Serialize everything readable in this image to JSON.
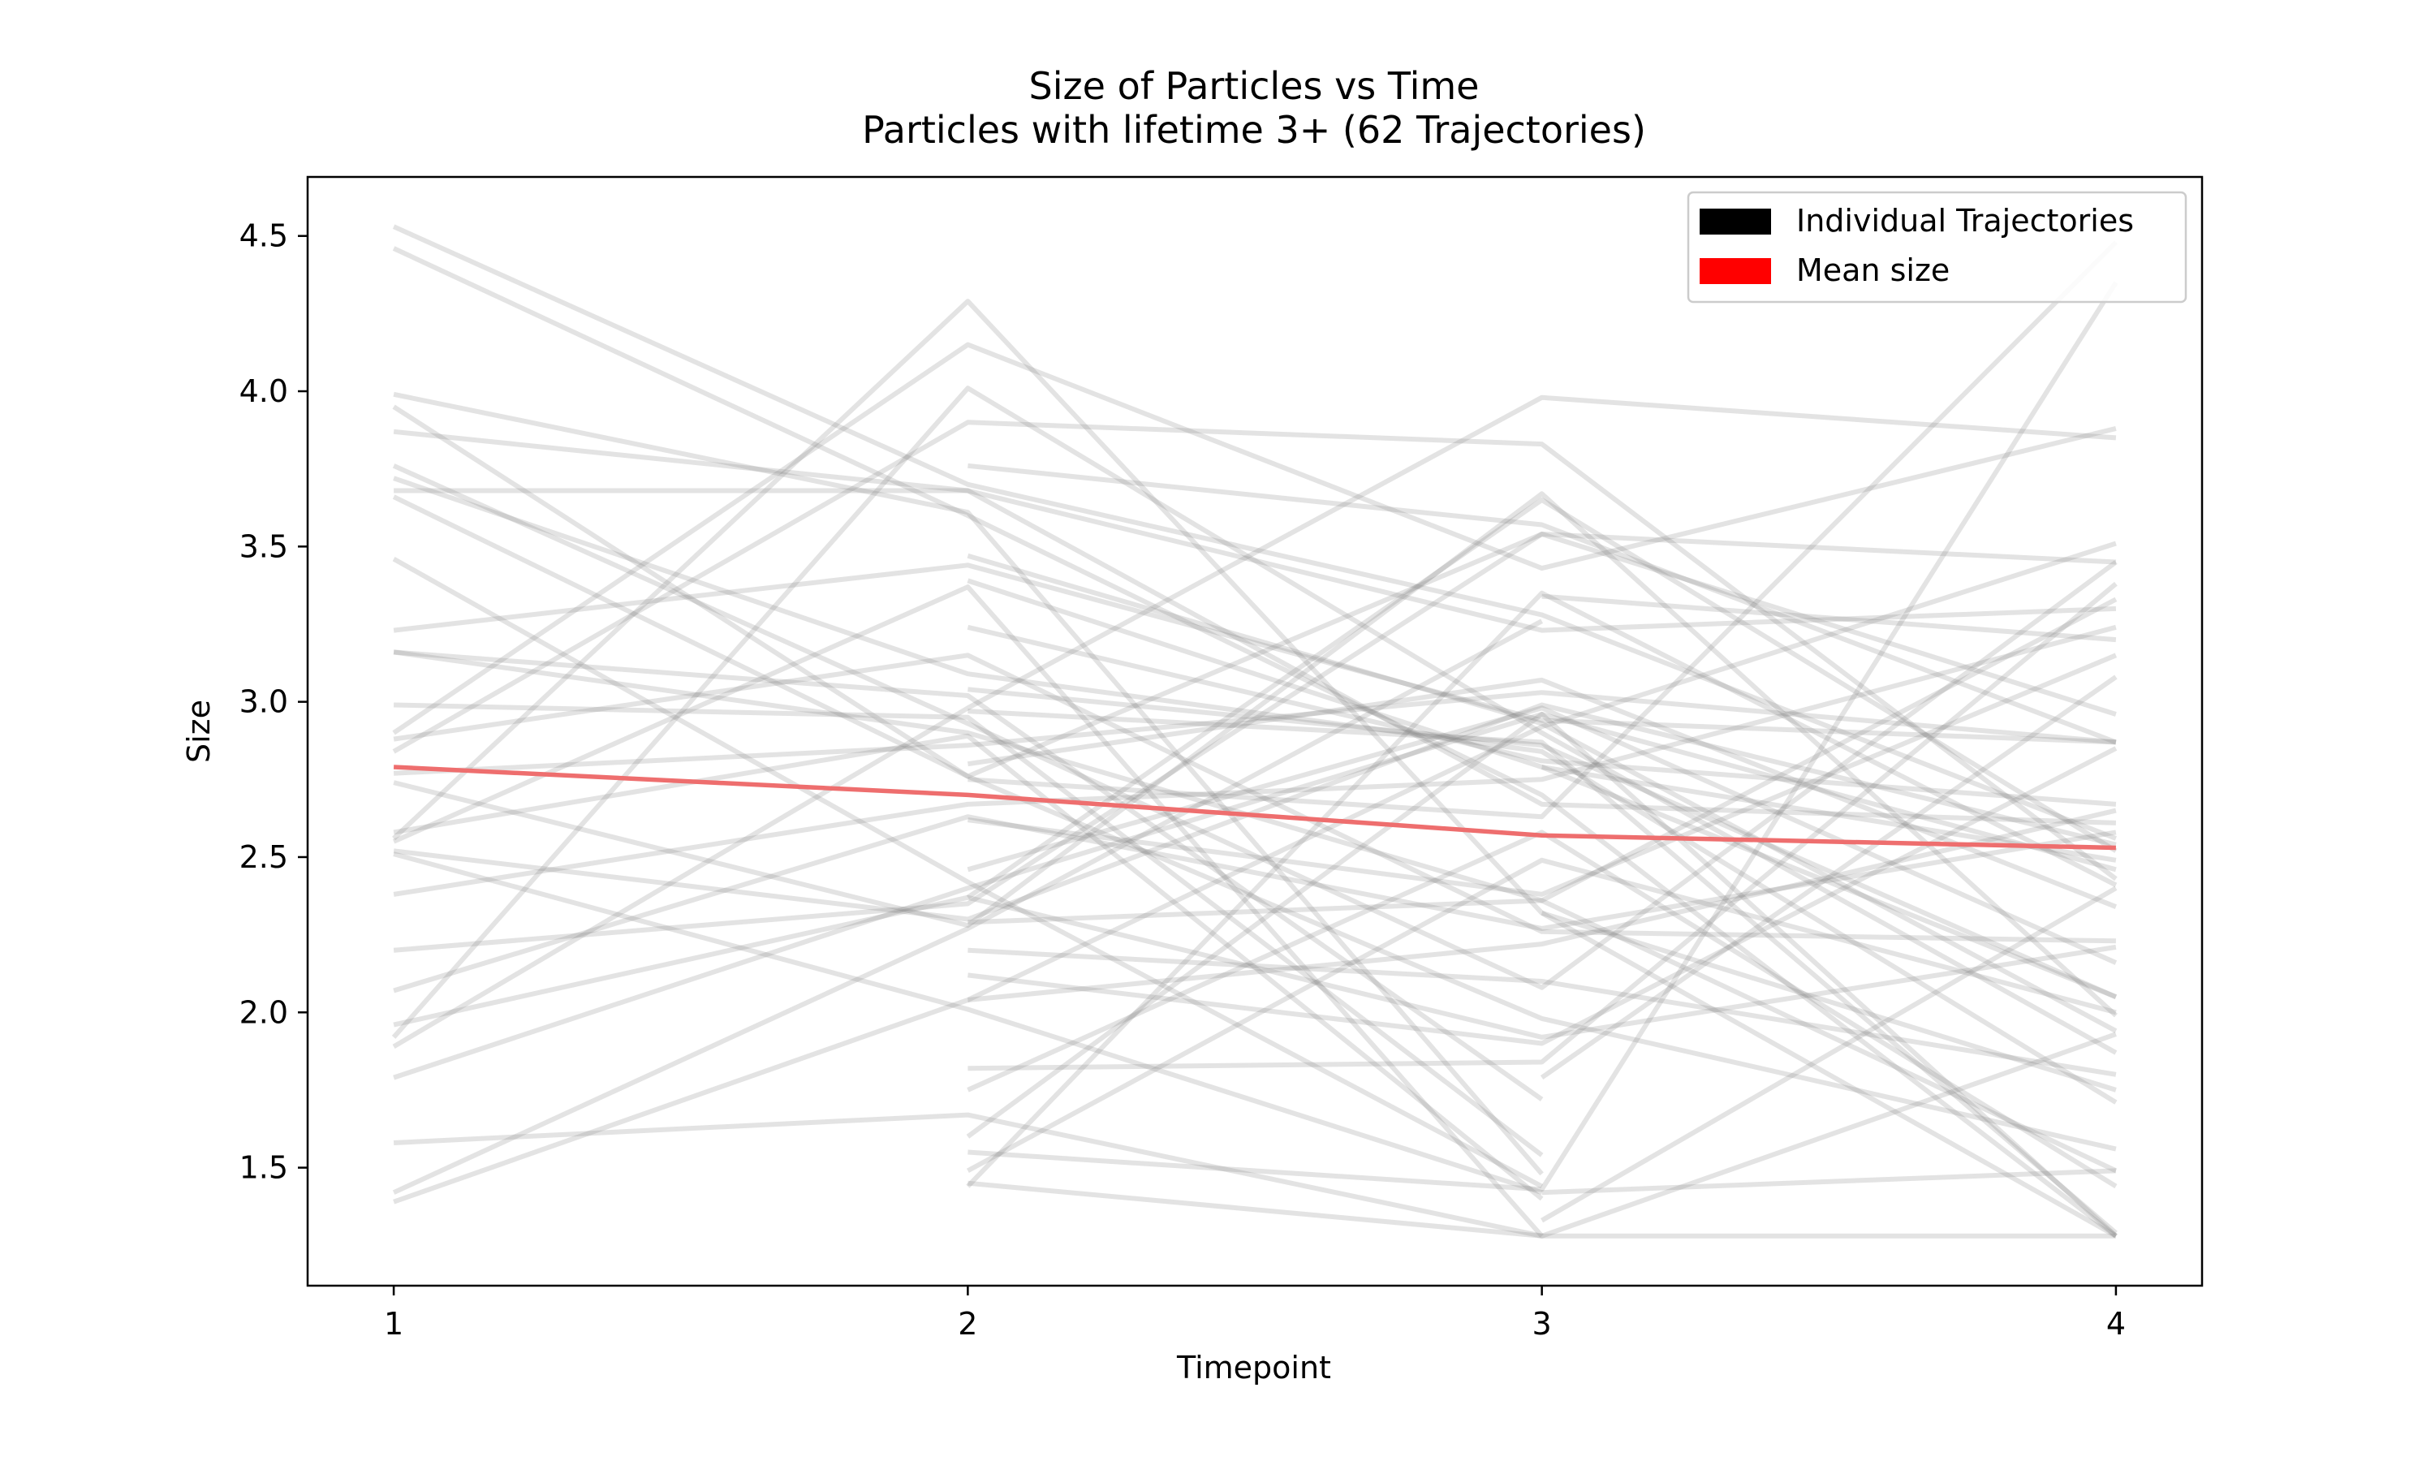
{
  "chart_data": {
    "type": "line",
    "title": "Size of Particles vs Time",
    "subtitle": "Particles with lifetime 3+ (62 Trajectories)",
    "xlabel": "Timepoint",
    "ylabel": "Size",
    "x": [
      1,
      2,
      3,
      4
    ],
    "xlim": [
      0.85,
      4.15
    ],
    "ylim": [
      1.12,
      4.69
    ],
    "xticks": [
      "1",
      "2",
      "3",
      "4"
    ],
    "yticks": [
      "1.5",
      "2.0",
      "2.5",
      "3.0",
      "3.5",
      "4.0",
      "4.5"
    ],
    "grid": false,
    "legend": {
      "placement": "top-right",
      "entries": [
        {
          "label": "Individual Trajectories",
          "color": "#000000"
        },
        {
          "label": "Mean size",
          "color": "#ff0000"
        }
      ]
    },
    "colors": {
      "trajectory": "#808080",
      "mean": "#ee6e6e"
    },
    "mean_series": {
      "name": "Mean size",
      "values": [
        2.79,
        2.7,
        2.57,
        2.53
      ]
    },
    "trajectories": [
      [
        1,
        [
          4.53,
          3.7,
          3.28,
          2.56
        ]
      ],
      [
        1,
        [
          4.46,
          3.6,
          2.7,
          1.28
        ]
      ],
      [
        1,
        [
          3.99,
          3.61,
          1.48
        ]
      ],
      [
        1,
        [
          3.95,
          2.76,
          3.54,
          2.96
        ]
      ],
      [
        1,
        [
          3.87,
          3.68,
          3.23,
          3.3
        ]
      ],
      [
        1,
        [
          3.76,
          2.93,
          2.08,
          3.45
        ]
      ],
      [
        1,
        [
          3.72,
          3.09,
          2.84,
          1.71
        ]
      ],
      [
        1,
        [
          3.68,
          3.68,
          2.67,
          2.61
        ]
      ],
      [
        1,
        [
          3.66,
          2.76,
          1.98,
          1.56
        ]
      ],
      [
        1,
        [
          3.46,
          2.42,
          1.44
        ]
      ],
      [
        1,
        [
          3.23,
          3.44,
          2.94,
          2.87
        ]
      ],
      [
        1,
        [
          3.16,
          2.9,
          2.36,
          3.33
        ]
      ],
      [
        1,
        [
          3.16,
          3.02,
          1.72
        ]
      ],
      [
        1,
        [
          2.99,
          2.95,
          1.54
        ]
      ],
      [
        1,
        [
          2.9,
          4.15,
          3.43,
          3.88
        ]
      ],
      [
        1,
        [
          2.88,
          3.15,
          2.26,
          2.23
        ]
      ],
      [
        1,
        [
          2.84,
          3.9,
          3.83,
          2.43
        ]
      ],
      [
        1,
        [
          2.77,
          2.86,
          3.03,
          2.87
        ]
      ],
      [
        1,
        [
          2.74,
          2.28,
          3.67,
          1.99
        ]
      ],
      [
        1,
        [
          2.58,
          2.89,
          1.4
        ]
      ],
      [
        1,
        [
          2.56,
          4.29,
          2.32,
          1.28
        ]
      ],
      [
        1,
        [
          2.55,
          3.37,
          1.28
        ]
      ],
      [
        1,
        [
          2.52,
          2.3,
          2.99,
          2.54
        ]
      ],
      [
        1,
        [
          2.51,
          2.01,
          1.42
        ]
      ],
      [
        1,
        [
          2.38,
          2.67,
          2.75,
          3.24
        ]
      ],
      [
        1,
        [
          2.2,
          2.35,
          3.54,
          3.45
        ]
      ],
      [
        1,
        [
          2.07,
          2.63,
          2.27,
          2.58
        ]
      ],
      [
        1,
        [
          1.96,
          2.37,
          1.92,
          2.21
        ]
      ],
      [
        1,
        [
          1.92,
          4.01,
          2.9,
          1.87
        ]
      ],
      [
        1,
        [
          1.89,
          2.98,
          3.98,
          3.85
        ]
      ],
      [
        1,
        [
          1.79,
          2.4,
          2.96,
          2.46
        ]
      ],
      [
        1,
        [
          1.58,
          1.67,
          1.28,
          1.28
        ]
      ],
      [
        1,
        [
          1.42,
          2.27,
          3.26
        ]
      ],
      [
        1,
        [
          1.39,
          2.04,
          2.92,
          3.51
        ]
      ],
      [
        2,
        [
          3.76,
          3.57,
          2.87
        ]
      ],
      [
        2,
        [
          3.47,
          2.93,
          1.94
        ]
      ],
      [
        2,
        [
          3.39,
          2.79,
          2.05
        ]
      ],
      [
        2,
        [
          3.24,
          2.81,
          2.67
        ]
      ],
      [
        2,
        [
          3.04,
          2.86,
          2.05
        ]
      ],
      [
        2,
        [
          2.97,
          2.87,
          1.29
        ]
      ],
      [
        2,
        [
          2.8,
          3.07,
          2.34
        ]
      ],
      [
        2,
        [
          2.75,
          2.63,
          4.48
        ]
      ],
      [
        2,
        [
          2.62,
          2.38,
          3.15
        ]
      ],
      [
        2,
        [
          2.46,
          2.98,
          2.16
        ]
      ],
      [
        2,
        [
          2.37,
          3.65,
          2.52
        ]
      ],
      [
        2,
        [
          2.29,
          2.36,
          1.49
        ]
      ],
      [
        2,
        [
          2.2,
          2.1,
          1.8
        ]
      ],
      [
        2,
        [
          2.12,
          1.9,
          2.85
        ]
      ],
      [
        2,
        [
          2.04,
          2.22,
          2.65
        ]
      ],
      [
        2,
        [
          1.82,
          1.84,
          3.38
        ]
      ],
      [
        2,
        [
          1.75,
          2.58,
          1.44
        ]
      ],
      [
        2,
        [
          1.6,
          2.96,
          1.28
        ]
      ],
      [
        2,
        [
          1.55,
          1.43,
          4.35
        ]
      ],
      [
        2,
        [
          1.49,
          2.49,
          2.0
        ]
      ],
      [
        2,
        [
          1.44,
          3.35,
          2.41
        ]
      ],
      [
        2,
        [
          1.45,
          1.28,
          1.93
        ]
      ],
      [
        3,
        [
          3.34,
          3.2
        ]
      ],
      [
        3,
        [
          2.79,
          2.49
        ]
      ],
      [
        3,
        [
          2.32,
          1.75
        ]
      ],
      [
        3,
        [
          1.79,
          3.08
        ]
      ],
      [
        3,
        [
          1.42,
          1.49
        ]
      ],
      [
        3,
        [
          1.33,
          2.4
        ]
      ]
    ]
  }
}
